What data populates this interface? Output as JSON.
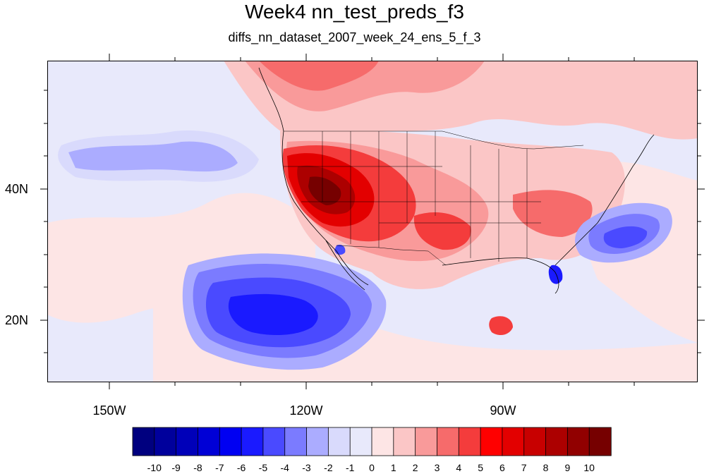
{
  "title": "Week4 nn_test_preds_f3",
  "subtitle": "diffs_nn_dataset_2007_week_24_ens_5_f_3",
  "map": {
    "region": "North America / Eastern Pacific",
    "projection": "cylindrical equidistant",
    "lon_range": [
      -160,
      -62
    ],
    "lat_range": [
      11,
      60
    ],
    "lat_ticks": [
      "40N",
      "20N"
    ],
    "lon_ticks": [
      "150W",
      "120W",
      "90W"
    ],
    "features": [
      "coastlines",
      "US state boundaries",
      "country boundaries"
    ]
  },
  "colorbar": {
    "levels": [
      "-10",
      "-9",
      "-8",
      "-7",
      "-6",
      "-5",
      "-4",
      "-3",
      "-2",
      "-1",
      "0",
      "1",
      "2",
      "3",
      "4",
      "5",
      "6",
      "7",
      "8",
      "9",
      "10"
    ],
    "colors": [
      "#00007f",
      "#00009c",
      "#0000b9",
      "#0000d6",
      "#0000f2",
      "#1a1aff",
      "#4a4aff",
      "#7b7bff",
      "#abacff",
      "#d9dafc",
      "#e8e9fb",
      "#fde5e5",
      "#fbc6c6",
      "#f99a9a",
      "#f66b6b",
      "#f43c3c",
      "#ff0000",
      "#e30000",
      "#c80000",
      "#ac0000",
      "#910000",
      "#760000"
    ]
  }
}
